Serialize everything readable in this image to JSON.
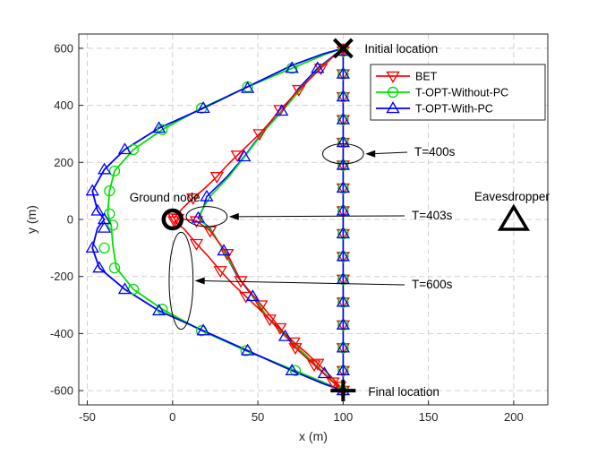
{
  "chart_data": {
    "type": "line",
    "xlabel": "x (m)",
    "ylabel": "y (m)",
    "xlim": [
      -55,
      220
    ],
    "ylim": [
      -650,
      650
    ],
    "xticks": [
      -50,
      0,
      50,
      100,
      150,
      200
    ],
    "yticks": [
      -600,
      -400,
      -200,
      0,
      200,
      400,
      600
    ],
    "x_tick_labels": [
      "-50",
      "0",
      "50",
      "100",
      "150",
      "200"
    ],
    "y_tick_labels": [
      "-600",
      "-400",
      "-200",
      "0",
      "200",
      "400",
      "600"
    ],
    "grid": true,
    "legend": "top-right",
    "series": [
      {
        "name": "BET",
        "color": "#ff0000",
        "marker": "triangle-down",
        "outbound": [
          [
            100,
            600
          ],
          [
            94,
            570
          ],
          [
            87,
            530
          ],
          [
            80,
            490
          ],
          [
            74,
            455
          ],
          [
            68,
            415
          ],
          [
            63,
            385
          ],
          [
            57,
            340
          ],
          [
            51,
            300
          ],
          [
            45,
            265
          ],
          [
            38,
            225
          ],
          [
            32,
            190
          ],
          [
            26,
            150
          ],
          [
            19,
            110
          ],
          [
            12,
            75
          ],
          [
            6,
            40
          ],
          [
            1,
            5
          ]
        ],
        "return": [
          [
            1,
            -5
          ],
          [
            7,
            -35
          ],
          [
            14,
            -85
          ],
          [
            21,
            -130
          ],
          [
            28,
            -180
          ],
          [
            35,
            -225
          ],
          [
            43,
            -270
          ],
          [
            50,
            -310
          ],
          [
            57,
            -350
          ],
          [
            64,
            -390
          ],
          [
            71,
            -430
          ],
          [
            78,
            -465
          ],
          [
            85,
            -505
          ],
          [
            92,
            -545
          ],
          [
            98,
            -585
          ],
          [
            100,
            -600
          ]
        ],
        "stay": [
          [
            100,
            -600
          ],
          [
            100,
            -570
          ],
          [
            100,
            -530
          ],
          [
            100,
            -490
          ],
          [
            100,
            -450
          ],
          [
            100,
            -410
          ],
          [
            100,
            -370
          ],
          [
            100,
            -330
          ],
          [
            100,
            -290
          ],
          [
            100,
            -250
          ],
          [
            100,
            -210
          ],
          [
            100,
            -170
          ],
          [
            100,
            -130
          ],
          [
            100,
            -90
          ],
          [
            100,
            -50
          ],
          [
            100,
            -10
          ],
          [
            100,
            30
          ],
          [
            100,
            70
          ],
          [
            100,
            110
          ],
          [
            100,
            150
          ],
          [
            100,
            190
          ],
          [
            100,
            230
          ],
          [
            100,
            270
          ],
          [
            100,
            310
          ],
          [
            100,
            350
          ],
          [
            100,
            390
          ],
          [
            100,
            430
          ],
          [
            100,
            470
          ],
          [
            100,
            510
          ],
          [
            100,
            550
          ],
          [
            100,
            590
          ]
        ],
        "return_leg2": [
          [
            3,
            3
          ],
          [
            14,
            -5
          ],
          [
            22,
            -40
          ],
          [
            32,
            -120
          ],
          [
            40,
            -215
          ],
          [
            52,
            -300
          ],
          [
            63,
            -380
          ],
          [
            72,
            -450
          ],
          [
            83,
            -510
          ],
          [
            94,
            -570
          ],
          [
            100,
            -600
          ]
        ]
      },
      {
        "name": "T-OPT-Without-PC",
        "color": "#00e000",
        "marker": "circle",
        "points": [
          [
            100,
            600
          ],
          [
            90,
            580
          ],
          [
            70,
            530
          ],
          [
            44,
            465
          ],
          [
            17,
            390
          ],
          [
            -6,
            315
          ],
          [
            -23,
            245
          ],
          [
            -34,
            170
          ],
          [
            -37,
            100
          ],
          [
            -38,
            20
          ],
          [
            -36,
            -20
          ],
          [
            -35,
            -90
          ],
          [
            -33,
            -170
          ],
          [
            -23,
            -245
          ],
          [
            -6,
            -315
          ],
          [
            17,
            -390
          ],
          [
            43,
            -460
          ],
          [
            72,
            -530
          ],
          [
            90,
            -575
          ],
          [
            100,
            -600
          ]
        ],
        "markers": [
          [
            70,
            530
          ],
          [
            44,
            465
          ],
          [
            17,
            390
          ],
          [
            -6,
            315
          ],
          [
            -23,
            245
          ],
          [
            -34,
            170
          ],
          [
            -37,
            100
          ],
          [
            -37,
            20
          ],
          [
            -35,
            -20
          ],
          [
            -40,
            -100
          ],
          [
            -34,
            -170
          ],
          [
            -23,
            -245
          ],
          [
            -6,
            -315
          ],
          [
            17,
            -390
          ],
          [
            43,
            -460
          ],
          [
            72,
            -530
          ]
        ]
      },
      {
        "name": "T-OPT-With-PC",
        "color": "#0000ff",
        "marker": "triangle-up",
        "points": [
          [
            100,
            600
          ],
          [
            88,
            580
          ],
          [
            70,
            540
          ],
          [
            44,
            465
          ],
          [
            18,
            390
          ],
          [
            -8,
            320
          ],
          [
            -28,
            245
          ],
          [
            -40,
            175
          ],
          [
            -47,
            100
          ],
          [
            -44,
            30
          ],
          [
            -40,
            0
          ],
          [
            -44,
            -30
          ],
          [
            -47,
            -100
          ],
          [
            -43,
            -170
          ],
          [
            -28,
            -245
          ],
          [
            -8,
            -320
          ],
          [
            18,
            -390
          ],
          [
            44,
            -460
          ],
          [
            70,
            -530
          ],
          [
            88,
            -575
          ],
          [
            100,
            -600
          ]
        ],
        "markers": [
          [
            70,
            530
          ],
          [
            44,
            460
          ],
          [
            18,
            390
          ],
          [
            -8,
            320
          ],
          [
            -28,
            245
          ],
          [
            -40,
            175
          ],
          [
            -47,
            100
          ],
          [
            -44,
            30
          ],
          [
            -40,
            0
          ],
          [
            -40,
            -30
          ],
          [
            -47,
            -100
          ],
          [
            -43,
            -170
          ],
          [
            -28,
            -245
          ],
          [
            -8,
            -320
          ],
          [
            18,
            -390
          ],
          [
            44,
            -460
          ],
          [
            70,
            -530
          ]
        ]
      }
    ],
    "inner_paths": [
      {
        "series": "T-OPT-With-PC",
        "points": [
          [
            100,
            600
          ],
          [
            85,
            530
          ],
          [
            74,
            460
          ],
          [
            64,
            380
          ],
          [
            52,
            300
          ],
          [
            42,
            220
          ],
          [
            32,
            150
          ],
          [
            20,
            80
          ],
          [
            18,
            40
          ],
          [
            15,
            5
          ],
          [
            22,
            -30
          ],
          [
            30,
            -110
          ],
          [
            38,
            -200
          ],
          [
            47,
            -270
          ],
          [
            55,
            -340
          ],
          [
            66,
            -410
          ],
          [
            77,
            -470
          ],
          [
            89,
            -540
          ],
          [
            100,
            -600
          ]
        ]
      },
      {
        "series": "T-OPT-Without-PC",
        "points": [
          [
            100,
            600
          ],
          [
            86,
            530
          ],
          [
            75,
            455
          ],
          [
            65,
            385
          ],
          [
            53,
            305
          ],
          [
            43,
            225
          ],
          [
            33,
            150
          ],
          [
            22,
            80
          ],
          [
            17,
            30
          ],
          [
            16,
            0
          ],
          [
            23,
            -40
          ],
          [
            31,
            -120
          ],
          [
            39,
            -205
          ],
          [
            48,
            -275
          ],
          [
            56,
            -345
          ],
          [
            67,
            -415
          ],
          [
            78,
            -475
          ],
          [
            90,
            -545
          ],
          [
            100,
            -600
          ]
        ]
      }
    ],
    "points_of_interest": [
      {
        "label": "Ground node",
        "x": 0,
        "y": 0,
        "marker": "circle-bold"
      },
      {
        "label": "Eavesdropper",
        "x": 200,
        "y": 0,
        "marker": "triangle-bold"
      },
      {
        "label": "Initial location",
        "x": 100,
        "y": 600,
        "marker": "x-cross"
      },
      {
        "label": "Final location",
        "x": 100,
        "y": -600,
        "marker": "plus"
      }
    ],
    "annotations": [
      {
        "text": "T=400s",
        "ellipse_center": [
          100,
          230
        ],
        "ellipse_rx": 12,
        "ellipse_ry": 35
      },
      {
        "text": "T=403s",
        "ellipse_center": [
          20,
          10
        ],
        "ellipse_rx": 12,
        "ellipse_ry": 35
      },
      {
        "text": "T=600s",
        "ellipse_center": [
          5,
          -215
        ],
        "ellipse_rx": 7,
        "ellipse_ry": 170
      }
    ]
  }
}
